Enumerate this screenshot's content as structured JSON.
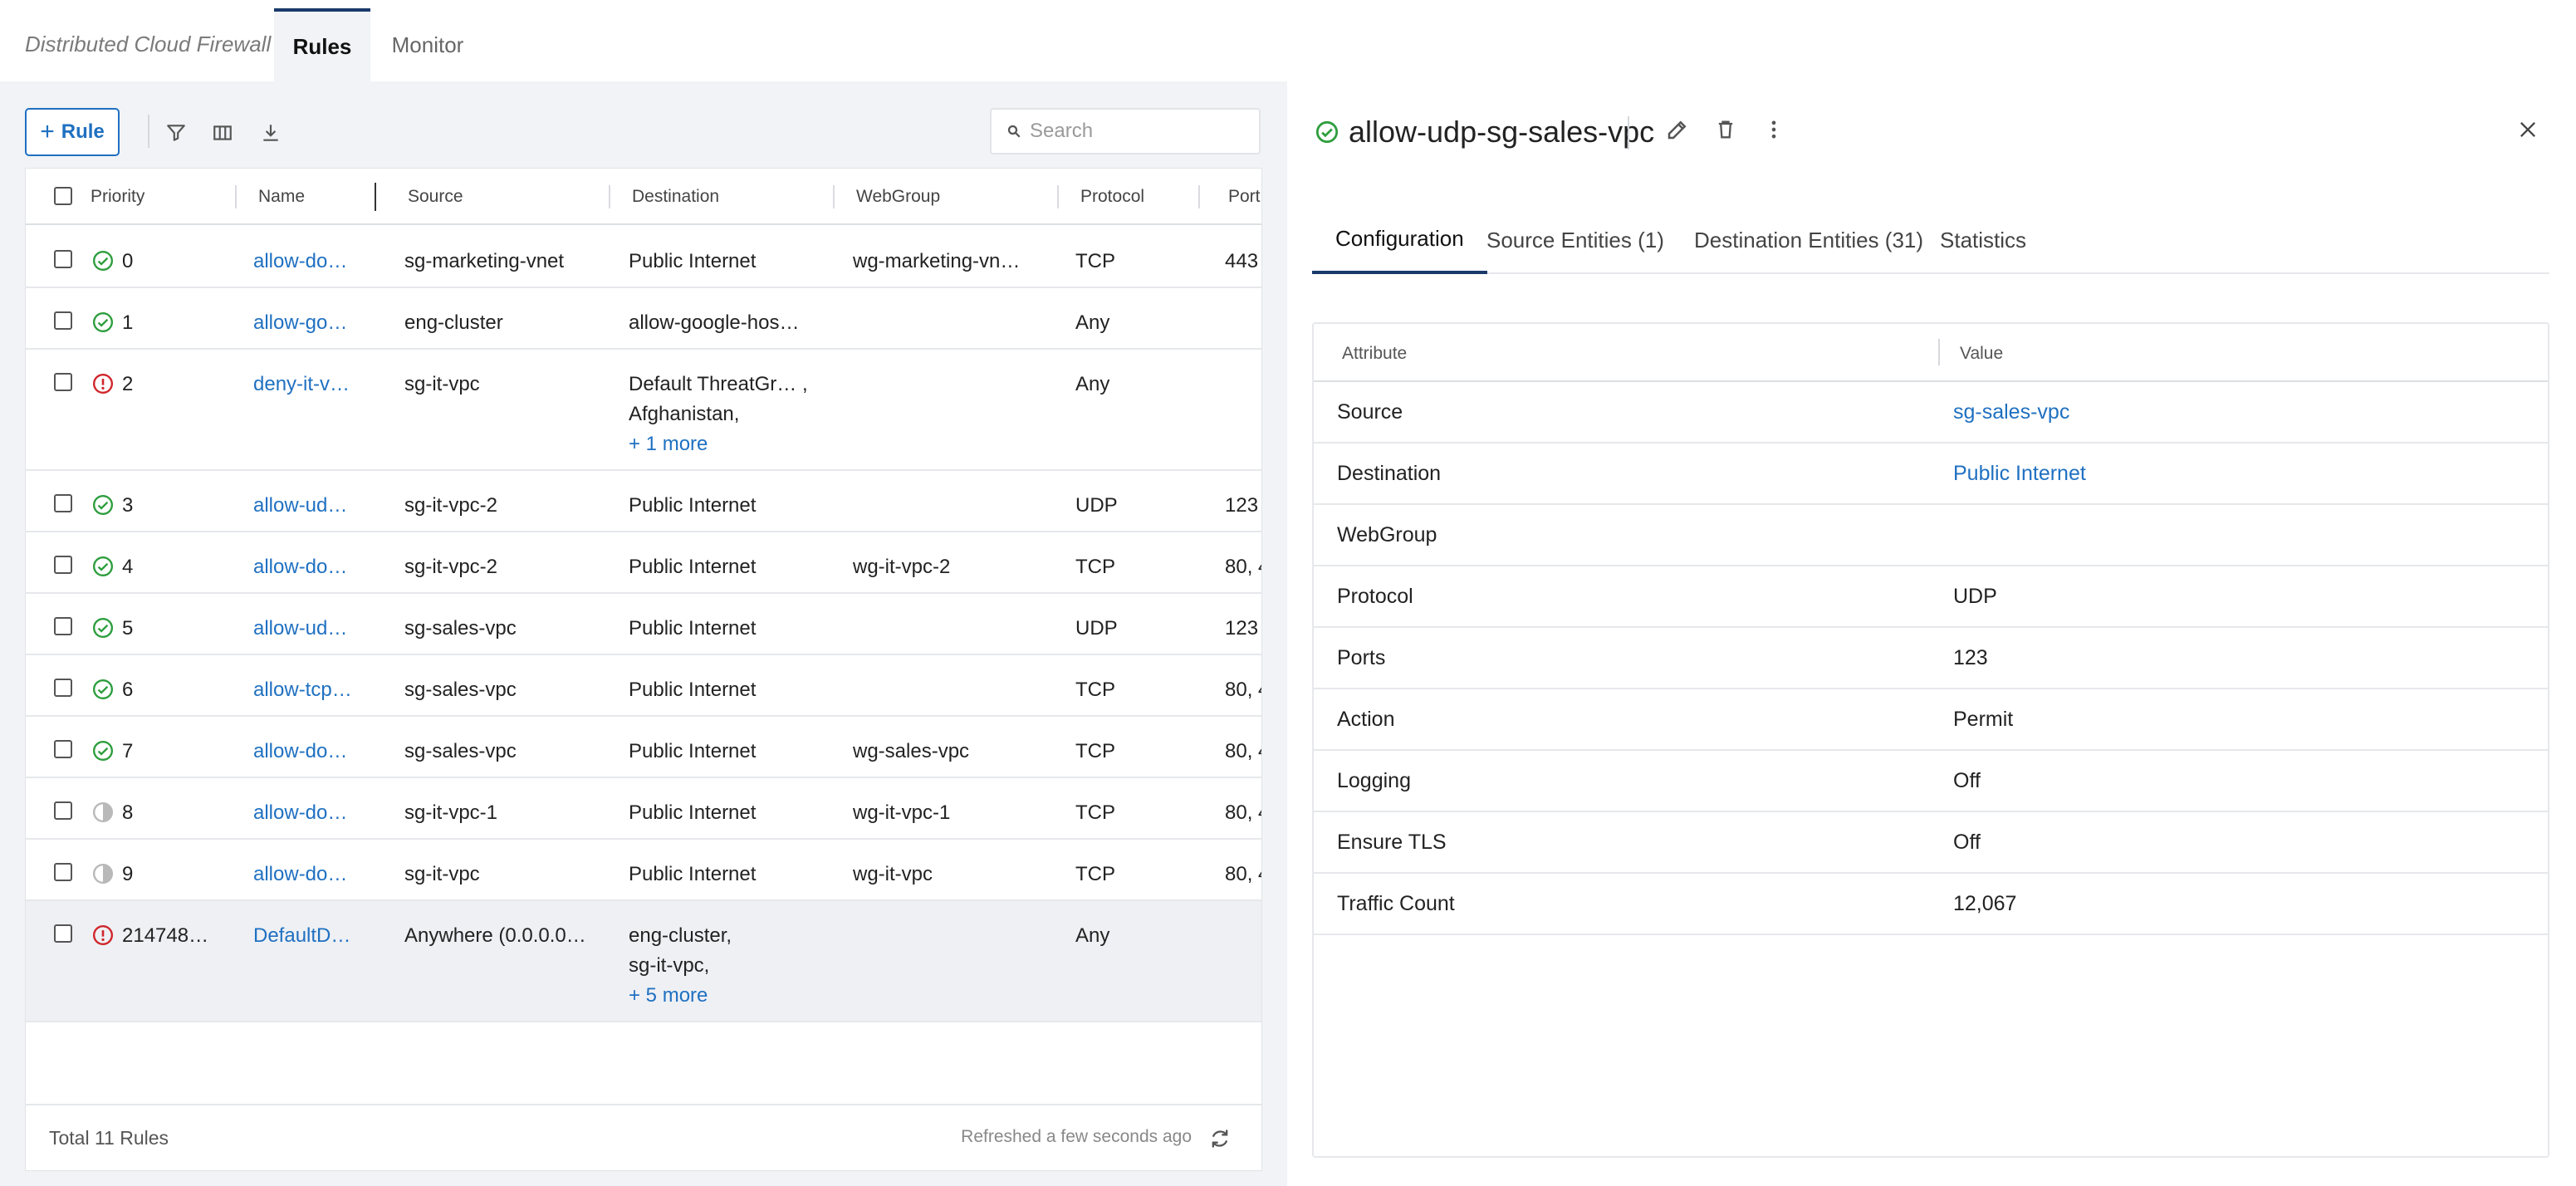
{
  "header": {
    "app_title": "Distributed Cloud Firewall",
    "tabs": [
      {
        "label": "Rules"
      },
      {
        "label": "Monitor"
      }
    ]
  },
  "toolbar": {
    "add_rule_label": "Rule",
    "search_placeholder": "Search"
  },
  "table": {
    "columns": [
      "Priority",
      "Name",
      "Source",
      "Destination",
      "WebGroup",
      "Protocol",
      "Port"
    ],
    "rows": [
      {
        "status": "ok",
        "priority": "0",
        "name": "allow-do…",
        "source": "sg-marketing-vnet",
        "destination": "Public Internet",
        "webgroup": "wg-marketing-vn…",
        "protocol": "TCP",
        "ports": "443"
      },
      {
        "status": "ok",
        "priority": "1",
        "name": "allow-go…",
        "source": "eng-cluster",
        "destination": "allow-google-hos…",
        "webgroup": "",
        "protocol": "Any",
        "ports": ""
      },
      {
        "status": "error",
        "priority": "2",
        "name": "deny-it-v…",
        "source": "sg-it-vpc",
        "destination": "Default ThreatGr… ,",
        "destination2": "Afghanistan,",
        "destination_more": "+ 1 more",
        "webgroup": "",
        "protocol": "Any",
        "ports": ""
      },
      {
        "status": "ok",
        "priority": "3",
        "name": "allow-ud…",
        "source": "sg-it-vpc-2",
        "destination": "Public Internet",
        "webgroup": "",
        "protocol": "UDP",
        "ports": "123"
      },
      {
        "status": "ok",
        "priority": "4",
        "name": "allow-do…",
        "source": "sg-it-vpc-2",
        "destination": "Public Internet",
        "webgroup": "wg-it-vpc-2",
        "protocol": "TCP",
        "ports": "80, 4"
      },
      {
        "status": "ok",
        "priority": "5",
        "name": "allow-ud…",
        "source": "sg-sales-vpc",
        "destination": "Public Internet",
        "webgroup": "",
        "protocol": "UDP",
        "ports": "123"
      },
      {
        "status": "ok",
        "priority": "6",
        "name": "allow-tcp…",
        "source": "sg-sales-vpc",
        "destination": "Public Internet",
        "webgroup": "",
        "protocol": "TCP",
        "ports": "80, 4"
      },
      {
        "status": "ok",
        "priority": "7",
        "name": "allow-do…",
        "source": "sg-sales-vpc",
        "destination": "Public Internet",
        "webgroup": "wg-sales-vpc",
        "protocol": "TCP",
        "ports": "80, 4"
      },
      {
        "status": "partial",
        "priority": "8",
        "name": "allow-do…",
        "source": "sg-it-vpc-1",
        "destination": "Public Internet",
        "webgroup": "wg-it-vpc-1",
        "protocol": "TCP",
        "ports": "80, 4"
      },
      {
        "status": "partial",
        "priority": "9",
        "name": "allow-do…",
        "source": "sg-it-vpc",
        "destination": "Public Internet",
        "webgroup": "wg-it-vpc",
        "protocol": "TCP",
        "ports": "80, 4"
      },
      {
        "status": "error",
        "priority": "214748…",
        "name": "DefaultD…",
        "source": "Anywhere (0.0.0.0…",
        "destination": "eng-cluster,",
        "destination2": "sg-it-vpc,",
        "destination_more": "+ 5 more",
        "webgroup": "",
        "protocol": "Any",
        "ports": ""
      }
    ],
    "footer_total": "Total 11 Rules",
    "footer_refreshed": "Refreshed a few seconds ago"
  },
  "detail": {
    "title": "allow-udp-sg-sales-vpc",
    "tabs": [
      {
        "label": "Configuration"
      },
      {
        "label": "Source Entities (1)"
      },
      {
        "label": "Destination Entities (31)"
      },
      {
        "label": "Statistics"
      }
    ],
    "attr_header": "Attribute",
    "value_header": "Value",
    "attributes": [
      {
        "name": "Source",
        "value": "sg-sales-vpc",
        "link": true
      },
      {
        "name": "Destination",
        "value": "Public Internet",
        "link": true
      },
      {
        "name": "WebGroup",
        "value": ""
      },
      {
        "name": "Protocol",
        "value": "UDP"
      },
      {
        "name": "Ports",
        "value": "123"
      },
      {
        "name": "Action",
        "value": "Permit"
      },
      {
        "name": "Logging",
        "value": "Off"
      },
      {
        "name": "Ensure TLS",
        "value": "Off"
      },
      {
        "name": "Traffic Count",
        "value": "12,067"
      }
    ]
  },
  "colors": {
    "accent": "#1f70c1",
    "success": "#2e9e3e",
    "error": "#d0262b",
    "partial": "#b9b9b9"
  }
}
